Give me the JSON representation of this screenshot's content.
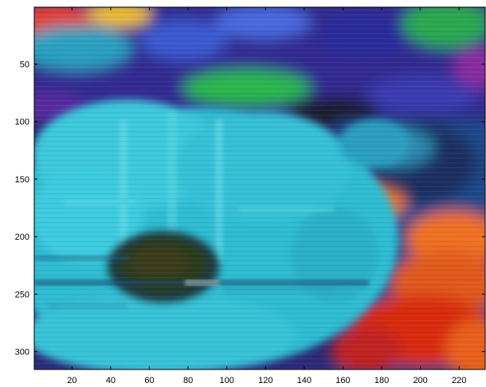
{
  "chart_data": {
    "type": "heatmap",
    "title": "",
    "xlabel": "",
    "ylabel": "",
    "image_content": "blurred false-color photograph of a cyan daisy-like flower with dark center, orange/red flowers lower right, purple/blue/green foliage at top",
    "xlim": [
      0.5,
      233.5
    ],
    "ylim": [
      0.5,
      315.5
    ],
    "y_reversed": true,
    "x_ticks": [
      20,
      40,
      60,
      80,
      100,
      120,
      140,
      160,
      180,
      200,
      220
    ],
    "y_ticks": [
      50,
      100,
      150,
      200,
      250,
      300
    ],
    "grid": false,
    "colors": {
      "petal_cyan": "#2fc4d8",
      "petal_light": "#5ad6e6",
      "center_dark": "#2b3a1e",
      "orange": "#f07020",
      "red": "#d82a10",
      "purple": "#3a2a9a",
      "blue": "#1f4fd0",
      "green": "#22b04a",
      "yellow": "#f0c020"
    }
  }
}
